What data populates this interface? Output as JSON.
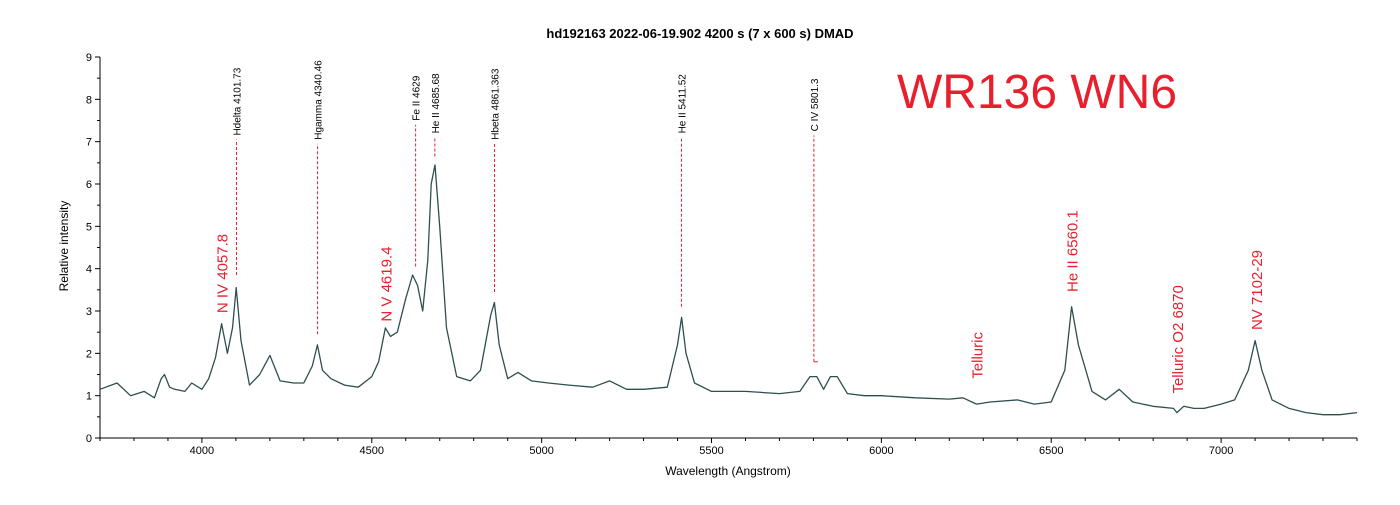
{
  "chart_data": {
    "type": "line",
    "title": "hd192163   2022-06-19.902   4200 s (7 x 600 s)   DMAD",
    "xlabel": "Wavelength (Angstrom)",
    "ylabel": "Relative intensity",
    "xlim": [
      3700,
      7400
    ],
    "ylim": [
      0,
      9
    ],
    "xticks": [
      4000,
      4500,
      5000,
      5500,
      6000,
      6500,
      7000
    ],
    "yticks": [
      0,
      1,
      2,
      3,
      4,
      5,
      6,
      7,
      8,
      9
    ],
    "grid": false,
    "legend": "none",
    "series_color": "#2f4f4f",
    "annotation_color": "#e8202e",
    "big_label": "WR136 WN6",
    "series": [
      {
        "x": [
          3700,
          3750,
          3790,
          3830,
          3860,
          3880,
          3890,
          3905,
          3920,
          3950,
          3970,
          4000,
          4020,
          4040,
          4058,
          4075,
          4090,
          4101,
          4115,
          4140,
          4170,
          4200,
          4230,
          4270,
          4300,
          4325,
          4340,
          4355,
          4380,
          4420,
          4460,
          4500,
          4520,
          4540,
          4555,
          4575,
          4600,
          4620,
          4635,
          4650,
          4665,
          4675,
          4686,
          4700,
          4720,
          4750,
          4790,
          4820,
          4850,
          4861,
          4875,
          4900,
          4930,
          4970,
          5020,
          5080,
          5150,
          5200,
          5250,
          5300,
          5370,
          5400,
          5412,
          5425,
          5450,
          5500,
          5600,
          5700,
          5760,
          5790,
          5810,
          5830,
          5850,
          5870,
          5900,
          5950,
          6000,
          6100,
          6200,
          6240,
          6280,
          6320,
          6400,
          6450,
          6500,
          6540,
          6560,
          6580,
          6620,
          6660,
          6700,
          6740,
          6800,
          6860,
          6870,
          6890,
          6920,
          6950,
          7000,
          7040,
          7080,
          7100,
          7120,
          7150,
          7200,
          7250,
          7300,
          7350,
          7400
        ],
        "y": [
          1.15,
          1.3,
          1.0,
          1.1,
          0.95,
          1.4,
          1.5,
          1.2,
          1.15,
          1.1,
          1.3,
          1.15,
          1.4,
          1.9,
          2.7,
          2.0,
          2.6,
          3.55,
          2.3,
          1.25,
          1.5,
          1.95,
          1.35,
          1.3,
          1.3,
          1.7,
          2.2,
          1.6,
          1.4,
          1.25,
          1.2,
          1.45,
          1.8,
          2.6,
          2.4,
          2.5,
          3.3,
          3.85,
          3.6,
          3.0,
          4.2,
          6.0,
          6.45,
          5.0,
          2.6,
          1.45,
          1.35,
          1.6,
          2.9,
          3.2,
          2.2,
          1.4,
          1.55,
          1.35,
          1.3,
          1.25,
          1.2,
          1.35,
          1.15,
          1.15,
          1.2,
          2.2,
          2.85,
          2.0,
          1.3,
          1.1,
          1.1,
          1.05,
          1.1,
          1.45,
          1.45,
          1.15,
          1.45,
          1.45,
          1.05,
          1.0,
          1.0,
          0.95,
          0.92,
          0.95,
          0.8,
          0.85,
          0.9,
          0.8,
          0.85,
          1.6,
          3.1,
          2.2,
          1.1,
          0.9,
          1.15,
          0.85,
          0.75,
          0.7,
          0.6,
          0.75,
          0.7,
          0.7,
          0.8,
          0.9,
          1.6,
          2.3,
          1.6,
          0.9,
          0.7,
          0.6,
          0.55,
          0.55,
          0.6
        ]
      }
    ],
    "line_ids": [
      {
        "label": "Hdelta 4101.73",
        "x": 4101.73,
        "y_from": 3.85,
        "y_to": 7.05
      },
      {
        "label": "Hgamma 4340.46",
        "x": 4340.46,
        "y_from": 2.45,
        "y_to": 6.95
      },
      {
        "label": "Fe II 4629",
        "x": 4629,
        "y_from": 4.05,
        "y_to": 7.4
      },
      {
        "label": "He II 4685.68",
        "x": 4685.68,
        "y_from": 6.65,
        "y_to": 7.1
      },
      {
        "label": "Hbeta 4861.363",
        "x": 4861.363,
        "y_from": 3.45,
        "y_to": 6.95
      },
      {
        "label": "He II 5411.52",
        "x": 5411.52,
        "y_from": 3.1,
        "y_to": 7.1
      },
      {
        "label": "C IV 5801.3",
        "x": 5801.3,
        "y_from": 1.8,
        "y_to": 7.15
      }
    ],
    "annotations": [
      {
        "text": "N IV 4057.8",
        "x": 4057.8,
        "y": 2.95
      },
      {
        "text": "N V 4619.4",
        "x": 4540,
        "y": 2.75
      },
      {
        "text": "Telluric",
        "x": 6280,
        "y": 1.4
      },
      {
        "text": "He II 6560.1",
        "x": 6560.1,
        "y": 3.45
      },
      {
        "text": "Telluric O2 6870",
        "x": 6870,
        "y": 1.05
      },
      {
        "text": "NV 7102-29",
        "x": 7102,
        "y": 2.55
      }
    ]
  }
}
